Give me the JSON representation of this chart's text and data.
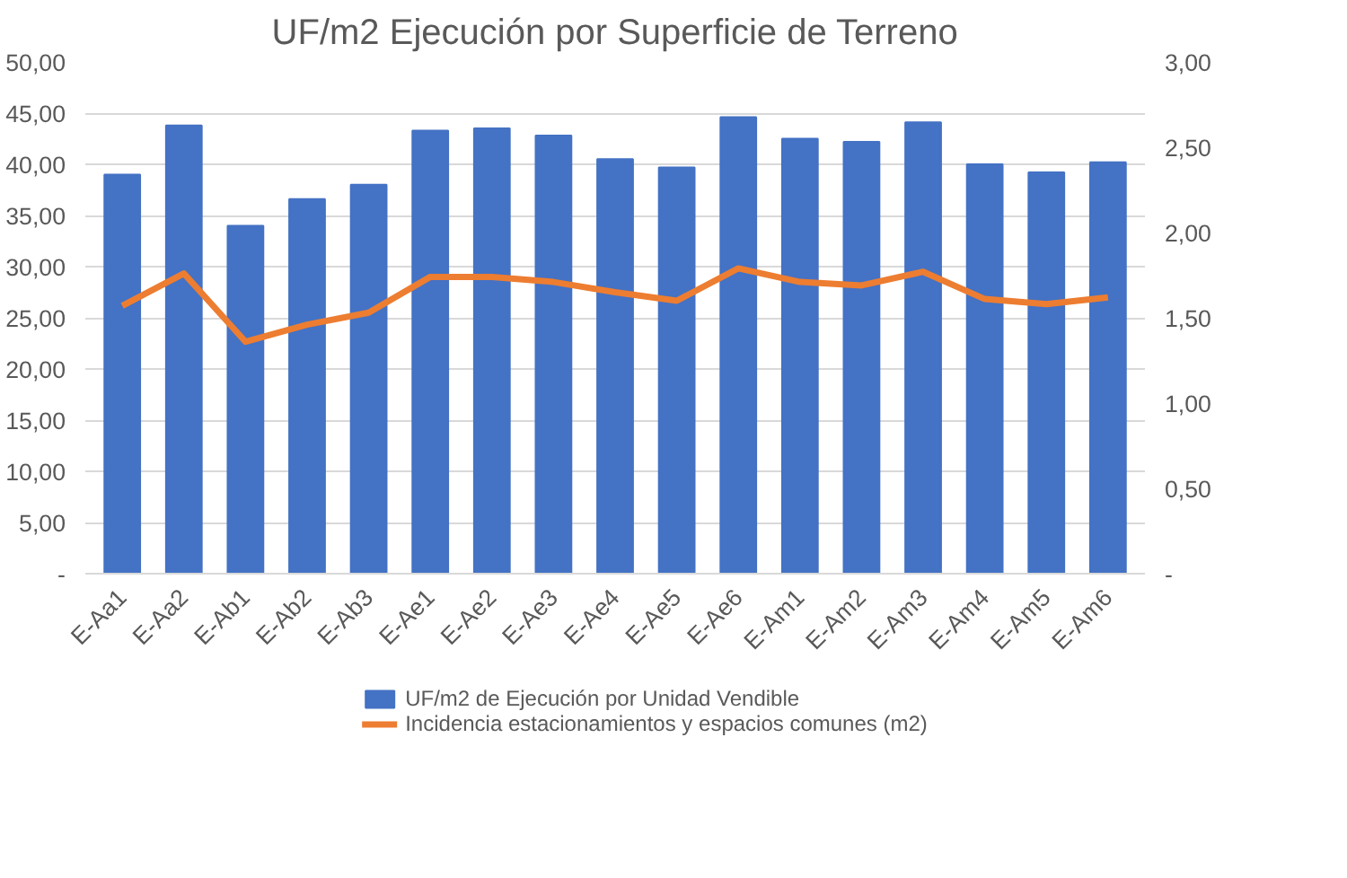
{
  "chart_data": {
    "type": "bar",
    "title": "UF/m2 Ejecución por Superficie de Terreno",
    "categories": [
      "E-Aa1",
      "E-Aa2",
      "E-Ab1",
      "E-Ab2",
      "E-Ab3",
      "E-Ae1",
      "E-Ae2",
      "E-Ae3",
      "E-Ae4",
      "E-Ae5",
      "E-Ae6",
      "E-Am1",
      "E-Am2",
      "E-Am3",
      "E-Am4",
      "E-Am5",
      "E-Am6"
    ],
    "series": [
      {
        "name": "UF/m2 de Ejecución por Unidad Vendible",
        "color": "#4472c4",
        "values": [
          39.0,
          43.8,
          34.0,
          36.6,
          38.0,
          43.3,
          43.5,
          42.8,
          40.5,
          39.7,
          44.6,
          42.5,
          42.2,
          44.1,
          40.0,
          39.2,
          40.2
        ]
      },
      {
        "name": "Incidencia estacionamientos y espacios comunes (m2)",
        "type": "line",
        "axis": "y2",
        "color": "#ed7d31",
        "values": [
          1.57,
          1.76,
          1.36,
          1.46,
          1.53,
          1.74,
          1.74,
          1.71,
          1.65,
          1.6,
          1.79,
          1.71,
          1.69,
          1.77,
          1.61,
          1.58,
          1.62
        ]
      }
    ],
    "ylim": [
      0,
      50
    ],
    "yticks": [
      {
        "value": 0,
        "label": "-"
      },
      {
        "value": 5,
        "label": "5,00"
      },
      {
        "value": 10,
        "label": "10,00"
      },
      {
        "value": 15,
        "label": "15,00"
      },
      {
        "value": 20,
        "label": "20,00"
      },
      {
        "value": 25,
        "label": "25,00"
      },
      {
        "value": 30,
        "label": "30,00"
      },
      {
        "value": 35,
        "label": "35,00"
      },
      {
        "value": 40,
        "label": "40,00"
      },
      {
        "value": 45,
        "label": "45,00"
      },
      {
        "value": 50,
        "label": "50,00"
      }
    ],
    "y2lim": [
      0,
      3
    ],
    "y2ticks": [
      {
        "value": 0,
        "label": "-"
      },
      {
        "value": 0.5,
        "label": "0,50"
      },
      {
        "value": 1,
        "label": "1,00"
      },
      {
        "value": 1.5,
        "label": "1,50"
      },
      {
        "value": 2,
        "label": "2,00"
      },
      {
        "value": 2.5,
        "label": "2,50"
      },
      {
        "value": 3,
        "label": "3,00"
      }
    ],
    "grid": "y",
    "legend": "bottom",
    "marker": "none",
    "line_style": "solid"
  }
}
